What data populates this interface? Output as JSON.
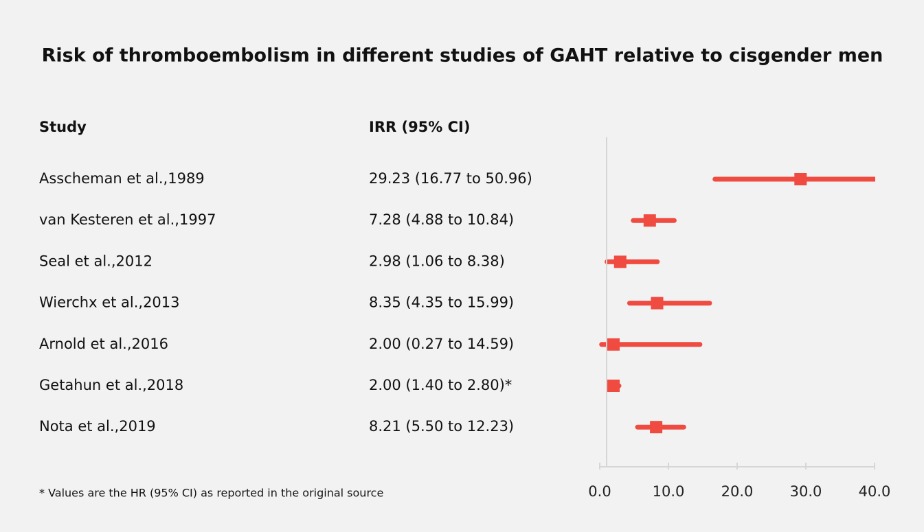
{
  "chart_data": {
    "type": "forest",
    "title": "Risk of thromboembolism in different studies of GAHT relative to cisgender men",
    "study_header": "Study",
    "estimate_header": "IRR (95% CI)",
    "categories": [
      "Asscheman et al.,1989",
      "van Kesteren et al.,1997",
      "Seal et al.,2012",
      "Wierchx et al.,2013",
      "Arnold et al.,2016",
      "Getahun et al.,2018",
      "Nota et al.,2019"
    ],
    "values": [
      29.23,
      7.28,
      2.98,
      8.35,
      2.0,
      2.0,
      8.21
    ],
    "lower": [
      16.77,
      4.88,
      1.06,
      4.35,
      0.27,
      1.4,
      5.5
    ],
    "upper": [
      50.96,
      10.84,
      8.38,
      15.99,
      14.59,
      2.8,
      12.23
    ],
    "value_labels": [
      "29.23 (16.77 to 50.96)",
      "7.28 (4.88 to 10.84)",
      "2.98 (1.06 to 8.38)",
      "8.35 (4.35 to 15.99)",
      "2.00 (0.27 to 14.59)",
      "2.00 (1.40 to 2.80)*",
      "8.21 (5.50 to 12.23)"
    ],
    "color": "#ef4b41",
    "reference_line": 1,
    "xlim": [
      0,
      40
    ],
    "xticks": [
      {
        "value": 0,
        "label": "0.0"
      },
      {
        "value": 10,
        "label": "10.0"
      },
      {
        "value": 20,
        "label": "20.0"
      },
      {
        "value": 30,
        "label": "30.0"
      },
      {
        "value": 40,
        "label": "40.0"
      }
    ],
    "footnote": "* Values are the HR (95% CI) as reported in the original source"
  }
}
